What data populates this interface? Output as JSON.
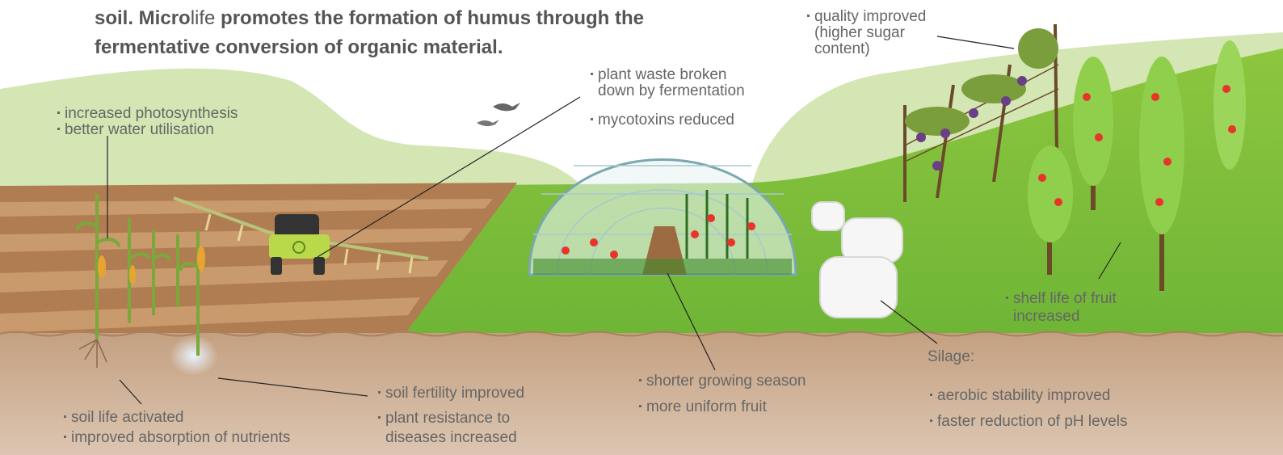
{
  "intro": {
    "line1": [
      "soil. Micro",
      "life",
      " promotes the formation of humus through the"
    ],
    "line2": "fermentative conversion of organic material."
  },
  "photosynthesis": [
    "increased photosynthesis",
    "better water utilisation"
  ],
  "fermentation": {
    "waste": [
      "plant waste broken",
      "down by fermentation"
    ],
    "mycotoxins": "mycotoxins reduced"
  },
  "quality": [
    "quality improved",
    "(higher sugar",
    "content)"
  ],
  "shelf_life": [
    "shelf life of fruit",
    "increased"
  ],
  "soil_life": [
    "soil life activated",
    "improved absorption of nutrients"
  ],
  "soil_fertility": {
    "fertility": "soil fertility improved",
    "resistance": [
      "plant resistance to",
      "diseases increased"
    ]
  },
  "greenhouse": [
    "shorter growing season",
    "more uniform fruit"
  ],
  "silage": {
    "heading": "Silage:",
    "items": [
      "aerobic stability improved",
      "faster reduction of pH levels"
    ]
  }
}
